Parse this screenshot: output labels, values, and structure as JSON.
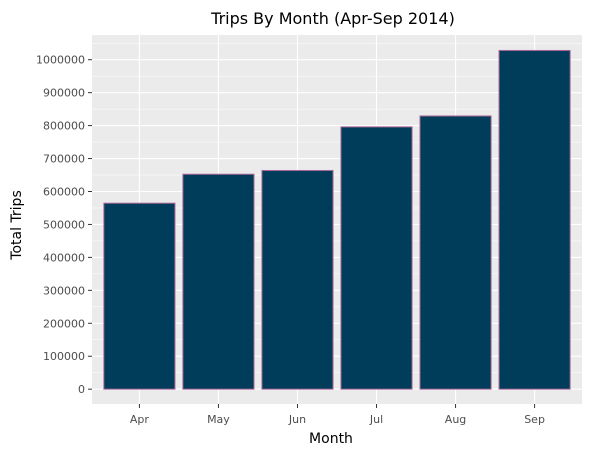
{
  "chart_data": {
    "type": "bar",
    "title": "Trips By Month (Apr-Sep 2014)",
    "xlabel": "Month",
    "ylabel": "Total Trips",
    "categories": [
      "Apr",
      "May",
      "Jun",
      "Jul",
      "Aug",
      "Sep"
    ],
    "values": [
      564516,
      652435,
      663844,
      796121,
      829275,
      1028136
    ],
    "ylim": [
      -45000,
      1075000
    ],
    "yticks": [
      0,
      100000,
      200000,
      300000,
      400000,
      500000,
      600000,
      700000,
      800000,
      900000,
      1000000
    ],
    "grid": true,
    "legend": "none",
    "colors": {
      "bar_fill": "#003d5b",
      "bar_outline": "#b06a9a",
      "panel_background": "#ebebeb",
      "gridline": "#ffffff"
    }
  }
}
